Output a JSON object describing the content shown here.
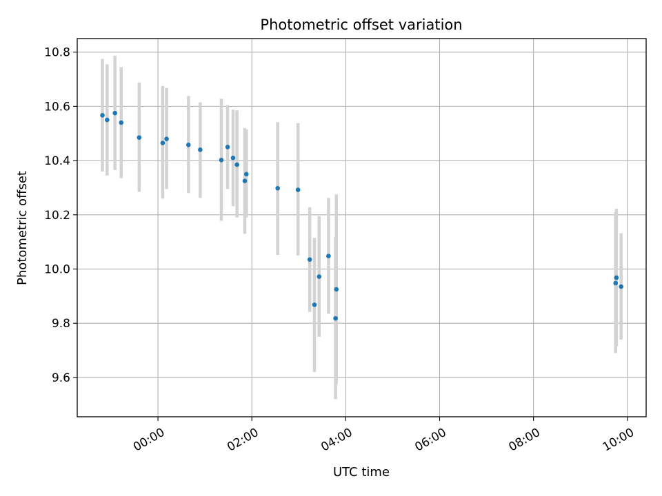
{
  "chart_data": {
    "type": "scatter",
    "title": "Photometric offset variation",
    "xlabel": "UTC time",
    "ylabel": "Photometric offset",
    "xlim_hours": [
      -1.72,
      10.4
    ],
    "ylim": [
      9.455,
      10.85
    ],
    "x_ticks": [
      {
        "hour": 0,
        "label": "00:00"
      },
      {
        "hour": 2,
        "label": "02:00"
      },
      {
        "hour": 4,
        "label": "04:00"
      },
      {
        "hour": 6,
        "label": "06:00"
      },
      {
        "hour": 8,
        "label": "08:00"
      },
      {
        "hour": 10,
        "label": "10:00"
      }
    ],
    "y_ticks": [
      {
        "value": 9.6,
        "label": "9.6"
      },
      {
        "value": 9.8,
        "label": "9.8"
      },
      {
        "value": 10.0,
        "label": "10.0"
      },
      {
        "value": 10.2,
        "label": "10.2"
      },
      {
        "value": 10.4,
        "label": "10.4"
      },
      {
        "value": 10.6,
        "label": "10.6"
      },
      {
        "value": 10.8,
        "label": "10.8"
      }
    ],
    "grid": true,
    "marker_color": "#1f77b4",
    "errorbar_color": "#d3d3d3",
    "points": [
      {
        "time": "-01:11",
        "y": 10.567,
        "ylow": 10.36,
        "yhigh": 10.775
      },
      {
        "time": "-01:05",
        "y": 10.55,
        "ylow": 10.345,
        "yhigh": 10.755
      },
      {
        "time": "-00:55",
        "y": 10.575,
        "ylow": 10.365,
        "yhigh": 10.787
      },
      {
        "time": "-00:47",
        "y": 10.54,
        "ylow": 10.335,
        "yhigh": 10.745
      },
      {
        "time": "-00:24",
        "y": 10.485,
        "ylow": 10.285,
        "yhigh": 10.688
      },
      {
        "time": "00:06",
        "y": 10.465,
        "ylow": 10.26,
        "yhigh": 10.675
      },
      {
        "time": "00:11",
        "y": 10.48,
        "ylow": 10.295,
        "yhigh": 10.668
      },
      {
        "time": "00:39",
        "y": 10.458,
        "ylow": 10.28,
        "yhigh": 10.638
      },
      {
        "time": "00:54",
        "y": 10.44,
        "ylow": 10.262,
        "yhigh": 10.615
      },
      {
        "time": "01:21",
        "y": 10.402,
        "ylow": 10.178,
        "yhigh": 10.628
      },
      {
        "time": "01:29",
        "y": 10.45,
        "ylow": 10.295,
        "yhigh": 10.605
      },
      {
        "time": "01:36",
        "y": 10.41,
        "ylow": 10.232,
        "yhigh": 10.588
      },
      {
        "time": "01:41",
        "y": 10.385,
        "ylow": 10.19,
        "yhigh": 10.585
      },
      {
        "time": "01:51",
        "y": 10.325,
        "ylow": 10.13,
        "yhigh": 10.52
      },
      {
        "time": "01:53",
        "y": 10.35,
        "ylow": 10.19,
        "yhigh": 10.515
      },
      {
        "time": "02:33",
        "y": 10.298,
        "ylow": 10.052,
        "yhigh": 10.542
      },
      {
        "time": "02:59",
        "y": 10.292,
        "ylow": 10.05,
        "yhigh": 10.538
      },
      {
        "time": "03:14",
        "y": 10.035,
        "ylow": 9.842,
        "yhigh": 10.228
      },
      {
        "time": "03:20",
        "y": 9.868,
        "ylow": 9.62,
        "yhigh": 10.115
      },
      {
        "time": "03:26",
        "y": 9.972,
        "ylow": 9.75,
        "yhigh": 10.195
      },
      {
        "time": "03:38",
        "y": 10.048,
        "ylow": 9.835,
        "yhigh": 10.262
      },
      {
        "time": "03:48",
        "y": 9.925,
        "ylow": 9.575,
        "yhigh": 10.275
      },
      {
        "time": "03:47",
        "y": 9.818,
        "ylow": 9.52,
        "yhigh": 10.118
      },
      {
        "time": "09:46",
        "y": 9.968,
        "ylow": 9.715,
        "yhigh": 10.222
      },
      {
        "time": "09:45",
        "y": 9.948,
        "ylow": 9.69,
        "yhigh": 10.21
      },
      {
        "time": "09:52",
        "y": 9.935,
        "ylow": 9.74,
        "yhigh": 10.132
      }
    ]
  }
}
